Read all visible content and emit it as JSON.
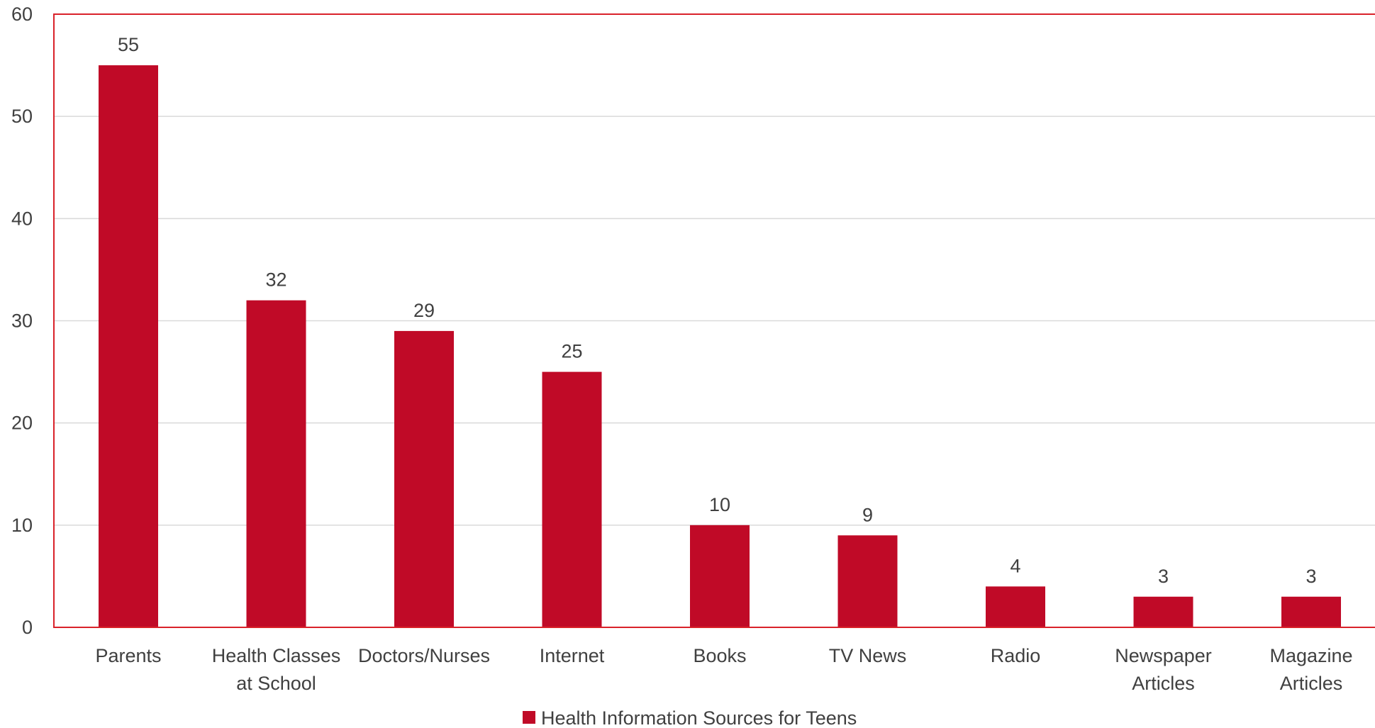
{
  "chart_data": {
    "type": "bar",
    "categories": [
      [
        "Parents"
      ],
      [
        "Health Classes",
        "at School"
      ],
      [
        "Doctors/Nurses"
      ],
      [
        "Internet"
      ],
      [
        "Books"
      ],
      [
        "TV News"
      ],
      [
        "Radio"
      ],
      [
        "Newspaper",
        "Articles"
      ],
      [
        "Magazine",
        "Articles"
      ]
    ],
    "series": [
      {
        "name": "Health Information Sources for Teens",
        "values": [
          55,
          32,
          29,
          25,
          10,
          9,
          4,
          3,
          3
        ],
        "color": "#C00A27"
      }
    ],
    "ylim": [
      0,
      60
    ],
    "yticks": [
      0,
      10,
      20,
      30,
      40,
      50,
      60
    ],
    "grid": true,
    "data_labels": true,
    "legend_position": "bottom",
    "colors": {
      "bar": "#C00A27",
      "plot_border": "#D9222A",
      "gridline": "#D9D9D9",
      "text": "#404040"
    }
  }
}
